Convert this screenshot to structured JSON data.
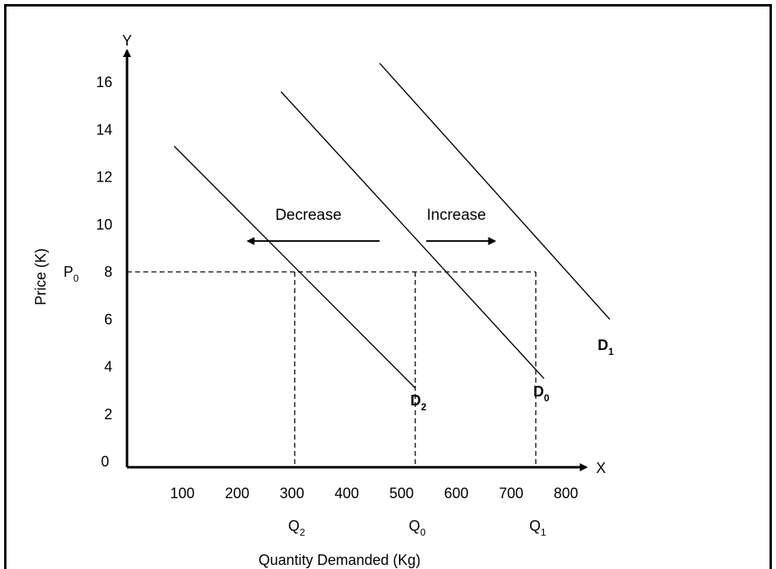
{
  "chart_data": {
    "type": "line",
    "title": "",
    "xlabel": "Quantity Demanded (Kg)",
    "ylabel": "Price (K)",
    "x_axis_letter": "X",
    "y_axis_letter": "Y",
    "origin_label": "0",
    "x_ticks": [
      100,
      200,
      300,
      400,
      500,
      600,
      700,
      800
    ],
    "y_ticks": [
      2,
      4,
      6,
      8,
      10,
      12,
      14,
      16
    ],
    "xlim": [
      0,
      800
    ],
    "ylim": [
      0,
      16
    ],
    "grid": false,
    "legend": "none",
    "series": [
      {
        "name": "D",
        "sub": "2",
        "x": [
          85,
          525
        ],
        "y": [
          13.3,
          3.1
        ]
      },
      {
        "name": "D",
        "sub": "0",
        "x": [
          280,
          760
        ],
        "y": [
          15.6,
          3.5
        ]
      },
      {
        "name": "D",
        "sub": "1",
        "x": [
          460,
          880
        ],
        "y": [
          16.8,
          6.0
        ]
      }
    ],
    "reference": {
      "price": 8,
      "price_label": "P",
      "price_sub": "0",
      "quantities": [
        {
          "x": 305,
          "label": "Q",
          "sub": "2"
        },
        {
          "x": 525,
          "label": "Q",
          "sub": "0"
        },
        {
          "x": 745,
          "label": "Q",
          "sub": "1"
        }
      ]
    },
    "annotations": [
      {
        "text": "Decrease",
        "x": 330,
        "y": 10.4
      },
      {
        "text": "Increase",
        "x": 600,
        "y": 10.4
      }
    ],
    "arrows": [
      {
        "direction": "left",
        "x_from": 460,
        "x_to": 220,
        "y": 9.3
      },
      {
        "direction": "right",
        "x_from": 545,
        "x_to": 670,
        "y": 9.3
      }
    ]
  }
}
